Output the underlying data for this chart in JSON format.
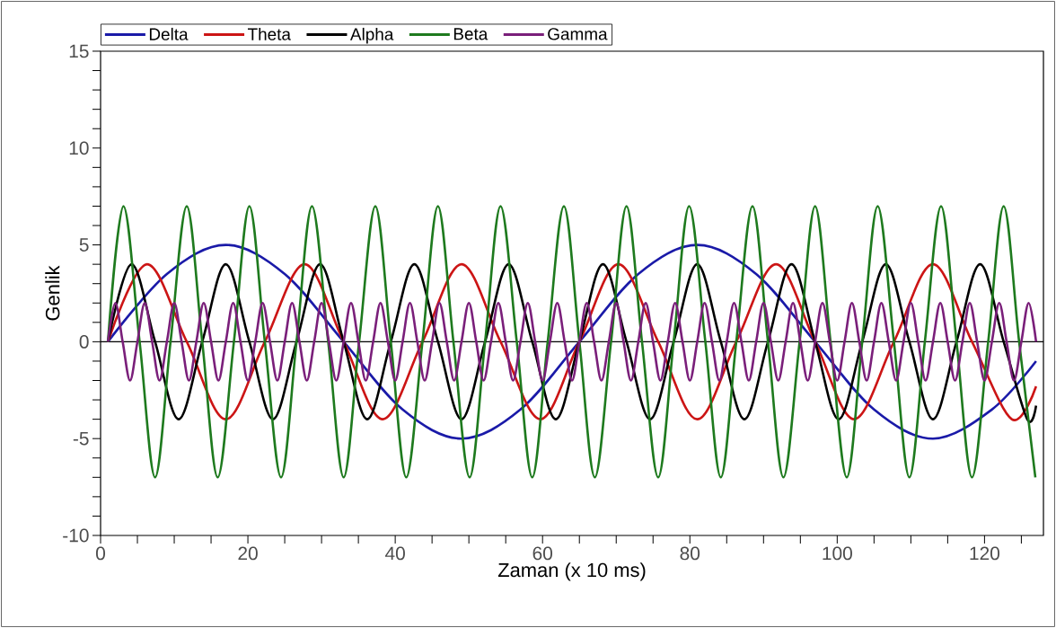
{
  "chart_data": {
    "type": "line",
    "xlabel": "Zaman (x 10 ms)",
    "ylabel": "Genlik",
    "xlim": [
      0,
      128
    ],
    "ylim": [
      -10,
      15
    ],
    "xticks": [
      0,
      {
        "value": 5,
        "label": null
      },
      {
        "value": 10,
        "label": null
      },
      {
        "value": 15,
        "label": null
      },
      20,
      {
        "value": 25,
        "label": null
      },
      {
        "value": 30,
        "label": null
      },
      {
        "value": 35,
        "label": null
      },
      40,
      {
        "value": 45,
        "label": null
      },
      {
        "value": 50,
        "label": null
      },
      {
        "value": 55,
        "label": null
      },
      60,
      {
        "value": 65,
        "label": null
      },
      {
        "value": 70,
        "label": null
      },
      {
        "value": 75,
        "label": null
      },
      80,
      {
        "value": 85,
        "label": null
      },
      {
        "value": 90,
        "label": null
      },
      {
        "value": 95,
        "label": null
      },
      100,
      {
        "value": 105,
        "label": null
      },
      {
        "value": 110,
        "label": null
      },
      {
        "value": 115,
        "label": null
      },
      120,
      {
        "value": 125,
        "label": null
      }
    ],
    "yticks": [
      -10,
      {
        "value": -9,
        "label": null
      },
      {
        "value": -8,
        "label": null
      },
      {
        "value": -7,
        "label": null
      },
      {
        "value": -6,
        "label": null
      },
      -5,
      {
        "value": -4,
        "label": null
      },
      {
        "value": -3,
        "label": null
      },
      {
        "value": -2,
        "label": null
      },
      {
        "value": -1,
        "label": null
      },
      0,
      {
        "value": 1,
        "label": null
      },
      {
        "value": 2,
        "label": null
      },
      {
        "value": 3,
        "label": null
      },
      {
        "value": 4,
        "label": null
      },
      5,
      {
        "value": 6,
        "label": null
      },
      {
        "value": 7,
        "label": null
      },
      {
        "value": 8,
        "label": null
      },
      {
        "value": 9,
        "label": null
      },
      10,
      {
        "value": 11,
        "label": null
      },
      {
        "value": 12,
        "label": null
      },
      {
        "value": 13,
        "label": null
      },
      {
        "value": 14,
        "label": null
      },
      15
    ],
    "legend": "top",
    "ref_lines": [
      {
        "axis": "y",
        "value": 0,
        "color": "#000000"
      }
    ],
    "series": [
      {
        "name": "Delta",
        "color": "#1a1aa8",
        "x": [
          1,
          9,
          17,
          25,
          33,
          41,
          49,
          57,
          65,
          73,
          81,
          89,
          97,
          105,
          113,
          121,
          127
        ],
        "values": [
          0,
          3.5,
          5,
          3.5,
          0,
          -3.5,
          -5,
          -3.5,
          0,
          3.5,
          5,
          3.5,
          0,
          -3.5,
          -5,
          -3.5,
          -1
        ]
      },
      {
        "name": "Theta",
        "color": "#cc1515",
        "x": [
          1,
          6.3,
          11.7,
          17,
          22.3,
          27.7,
          33,
          38.3,
          43.7,
          49,
          54.3,
          59.7,
          65,
          70.3,
          75.7,
          81,
          86.3,
          91.7,
          97,
          102.3,
          107.7,
          113,
          118.3,
          123.7,
          127
        ],
        "values": [
          0,
          4,
          0,
          -4,
          0,
          4,
          0,
          -4,
          0,
          4,
          0,
          -4,
          0,
          4,
          0,
          -4,
          0,
          4,
          0,
          -4,
          0,
          4,
          0,
          -4,
          -2.3
        ]
      },
      {
        "name": "Alpha",
        "color": "#000000",
        "x": [
          1,
          4.2,
          7.4,
          10.6,
          13.8,
          17,
          20.2,
          23.4,
          26.6,
          29.8,
          33,
          36.2,
          39.4,
          42.6,
          45.8,
          49,
          52.2,
          55.4,
          58.6,
          61.8,
          65,
          68.2,
          71.4,
          74.6,
          77.8,
          81,
          84.2,
          87.4,
          90.6,
          93.8,
          97,
          100.2,
          103.4,
          106.6,
          109.8,
          113,
          116.2,
          119.4,
          122.6,
          125.8,
          127
        ],
        "values": [
          0,
          4,
          0,
          -4,
          0,
          4,
          0,
          -4,
          0,
          4,
          0,
          -4,
          0,
          4,
          0,
          -4,
          0,
          4,
          0,
          -4,
          0,
          4,
          0,
          -4,
          0,
          4,
          0,
          -4,
          0,
          4,
          0,
          -4,
          0,
          4,
          0,
          -4,
          0,
          4,
          0,
          -4,
          -3.3
        ]
      },
      {
        "name": "Beta",
        "color": "#1e7a1e",
        "x": [
          1,
          3.1,
          5.3,
          7.4,
          9.5,
          11.7,
          13.8,
          15.9,
          18.1,
          20.2,
          22.3,
          24.5,
          26.6,
          28.7,
          30.9,
          33,
          35.1,
          37.3,
          39.4,
          41.5,
          43.7,
          45.8,
          47.9,
          50.1,
          52.2,
          54.3,
          56.5,
          58.6,
          60.7,
          62.9,
          65,
          67.1,
          69.3,
          71.4,
          73.5,
          75.7,
          77.8,
          79.9,
          82.1,
          84.2,
          86.3,
          88.5,
          90.6,
          92.7,
          94.9,
          97,
          99.1,
          101.3,
          103.4,
          105.5,
          107.7,
          109.8,
          111.9,
          114.1,
          116.2,
          118.3,
          120.5,
          122.6,
          124.7,
          126.9
        ],
        "values": [
          0,
          7,
          0,
          -7,
          0,
          7,
          0,
          -7,
          0,
          7,
          0,
          -7,
          0,
          7,
          0,
          -7,
          0,
          7,
          0,
          -7,
          0,
          7,
          0,
          -7,
          0,
          7,
          0,
          -7,
          0,
          7,
          0,
          -7,
          0,
          7,
          0,
          -7,
          0,
          7,
          0,
          -7,
          0,
          7,
          0,
          -7,
          0,
          7,
          0,
          -7,
          0,
          7,
          0,
          -7,
          0,
          7,
          0,
          -7,
          0,
          7,
          0,
          -7
        ]
      },
      {
        "name": "Gamma",
        "color": "#7a1f7a",
        "x": [
          1,
          2,
          3,
          4,
          5,
          6,
          7,
          8,
          9,
          10,
          11,
          12,
          13,
          14,
          15,
          16,
          17,
          18,
          19,
          20,
          21,
          22,
          23,
          24,
          25,
          26,
          27,
          28,
          29,
          30,
          31,
          32,
          33,
          34,
          35,
          36,
          37,
          38,
          39,
          40,
          41,
          42,
          43,
          44,
          45,
          46,
          47,
          48,
          49,
          50,
          51,
          52,
          53,
          54,
          55,
          56,
          57,
          58,
          59,
          60,
          61,
          62,
          63,
          64,
          65,
          66,
          67,
          68,
          69,
          70,
          71,
          72,
          73,
          74,
          75,
          76,
          77,
          78,
          79,
          80,
          81,
          82,
          83,
          84,
          85,
          86,
          87,
          88,
          89,
          90,
          91,
          92,
          93,
          94,
          95,
          96,
          97,
          98,
          99,
          100,
          101,
          102,
          103,
          104,
          105,
          106,
          107,
          108,
          109,
          110,
          111,
          112,
          113,
          114,
          115,
          116,
          117,
          118,
          119,
          120,
          121,
          122,
          123,
          124,
          125,
          126,
          127
        ],
        "values": [
          0,
          2,
          0,
          -2,
          0,
          2,
          0,
          -2,
          0,
          2,
          0,
          -2,
          0,
          2,
          0,
          -2,
          0,
          2,
          0,
          -2,
          0,
          2,
          0,
          -2,
          0,
          2,
          0,
          -2,
          0,
          2,
          0,
          -2,
          0,
          2,
          0,
          -2,
          0,
          2,
          0,
          -2,
          0,
          2,
          0,
          -2,
          0,
          2,
          0,
          -2,
          0,
          2,
          0,
          -2,
          0,
          2,
          0,
          -2,
          0,
          2,
          0,
          -2,
          0,
          2,
          0,
          -2,
          0,
          2,
          0,
          -2,
          0,
          2,
          0,
          -2,
          0,
          2,
          0,
          -2,
          0,
          2,
          0,
          -2,
          0,
          2,
          0,
          -2,
          0,
          2,
          0,
          -2,
          0,
          2,
          0,
          -2,
          0,
          2,
          0,
          -2,
          0,
          2,
          0,
          -2,
          0,
          2,
          0,
          -2,
          0,
          2,
          0,
          -2,
          0,
          2,
          0,
          -2,
          0,
          2,
          0,
          -2,
          0,
          2,
          0,
          -2,
          0,
          2,
          0,
          -2,
          0,
          2,
          0
        ]
      }
    ]
  }
}
